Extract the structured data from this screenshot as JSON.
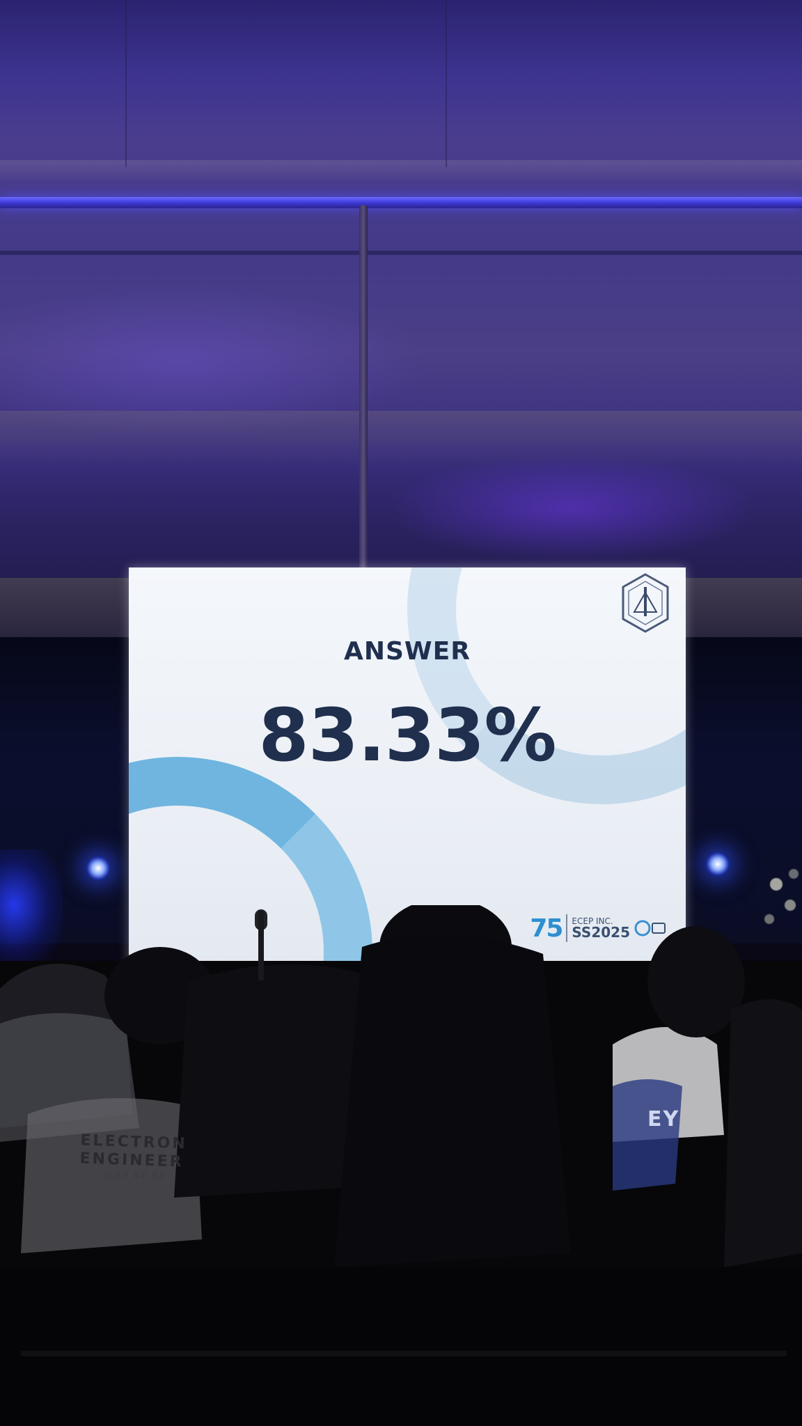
{
  "slide": {
    "title": "ANSWER",
    "value": "83.33%",
    "anniversary_mark": "75",
    "org_top": "ECEP INC.",
    "org_bottom": "SS2025"
  },
  "audience_shirt": {
    "line1": "ELECTRON",
    "line2": "ENGINEER",
    "line3": "ICEP BY EC",
    "right_text": "EY"
  },
  "colors": {
    "text_navy": "#1f2f4d",
    "accent_blue": "#2d8fd0",
    "stage_light": "#6f7cff"
  }
}
